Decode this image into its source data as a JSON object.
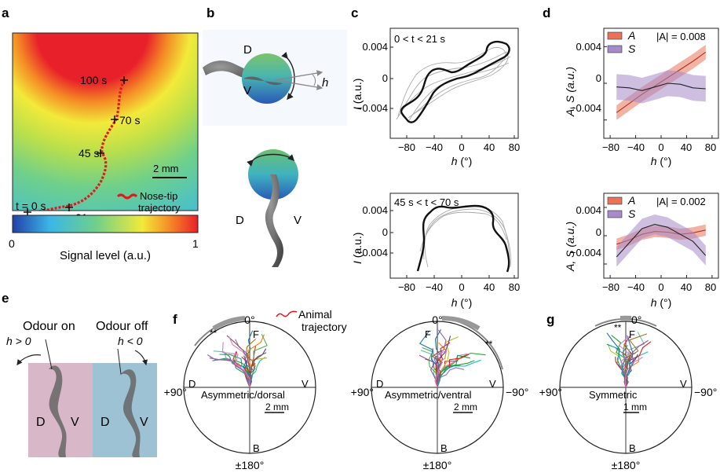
{
  "panel_labels": {
    "a": "a",
    "b": "b",
    "c": "c",
    "d": "d",
    "e": "e",
    "f": "f",
    "g": "g"
  },
  "panel_a": {
    "time_labels": [
      "t = 0 s",
      "21 s",
      "45 s",
      "70 s",
      "100 s"
    ],
    "scale_bar": "2 mm",
    "legend": [
      "Nose-tip",
      "trajectory"
    ],
    "colorbar_label": "Signal level (a.u.)",
    "colorbar_min": "0",
    "colorbar_max": "1",
    "colormap": [
      "#2340a8",
      "#3bb6e6",
      "#6fd08a",
      "#f2ea3a",
      "#f48a25",
      "#e8202a"
    ]
  },
  "panel_b": {
    "top": {
      "dorsal": "D",
      "ventral": "V",
      "head_angle": "h"
    },
    "bottom": {
      "dorsal": "D",
      "ventral": "V"
    }
  },
  "panel_c": {
    "ylabel_italic": "I",
    "ylabel_unit": " (a.u.)",
    "xlabel_italic": "h",
    "xlabel_unit": " (°)",
    "xticks": [
      "−80",
      "−40",
      "0",
      "40",
      "80"
    ],
    "yticks": [
      "0.004",
      "0",
      "−0.004"
    ],
    "top_window": "0 < t < 21 s",
    "bottom_window": "45 s < t < 70 s"
  },
  "panel_d": {
    "ylabel": "A, S (a.u.)",
    "xlabel_italic": "h",
    "xlabel_unit": " (°)",
    "xticks": [
      "−80",
      "−40",
      "0",
      "40",
      "80"
    ],
    "yticks": [
      "0.004",
      "0",
      "−0.004"
    ],
    "legend": [
      "A",
      "S"
    ],
    "top_annotation": "|A| = 0.008",
    "bottom_annotation": "|A| = 0.002",
    "colors": {
      "A": "#e8735a",
      "S": "#a58bc8"
    }
  },
  "chart_data": [
    {
      "type": "line",
      "panel": "d-top",
      "x": [
        -70,
        -50,
        -30,
        -10,
        10,
        30,
        50,
        70
      ],
      "series": [
        {
          "name": "A",
          "values": [
            -0.0032,
            -0.0022,
            -0.0012,
            -0.0003,
            0.0006,
            0.0015,
            0.0024,
            0.0034
          ]
        },
        {
          "name": "S",
          "values": [
            -0.0004,
            -0.0005,
            -0.0008,
            -0.0004,
            0.0,
            -0.0001,
            -0.0005,
            -0.0006
          ]
        }
      ],
      "xlim": [
        -90,
        90
      ],
      "ylim": [
        -0.006,
        0.006
      ]
    },
    {
      "type": "line",
      "panel": "d-bottom",
      "x": [
        -70,
        -50,
        -30,
        -10,
        10,
        30,
        50,
        70
      ],
      "series": [
        {
          "name": "A",
          "values": [
            -0.0012,
            -0.0006,
            0.0002,
            0.0006,
            0.0005,
            0.0002,
            0.0004,
            0.0008
          ]
        },
        {
          "name": "S",
          "values": [
            -0.003,
            -0.001,
            0.001,
            0.0016,
            0.0012,
            0.0002,
            -0.0008,
            -0.0028
          ]
        }
      ],
      "xlim": [
        -90,
        90
      ],
      "ylim": [
        -0.006,
        0.006
      ]
    }
  ],
  "panel_e": {
    "odour_on": "Odour on",
    "odour_off": "Odour off",
    "h_pos": "h > 0",
    "h_neg": "h < 0",
    "dorsal": "D",
    "ventral": "V"
  },
  "panel_f": {
    "legend": [
      "Animal",
      "trajectory"
    ],
    "zero": "0°",
    "plus90": "+90°",
    "minus90": "−90°",
    "pm180": "±180°",
    "F": "F",
    "B": "B",
    "D": "D",
    "V": "V",
    "significance": "**",
    "left_title": "Asymmetric/dorsal",
    "right_title": "Asymmetric/ventral",
    "scale_bar": "2 mm"
  },
  "panel_g": {
    "zero": "0°",
    "plus90": "+90°",
    "minus90": "−90°",
    "pm180": "±180°",
    "F": "F",
    "B": "B",
    "V": "V",
    "significance": "**",
    "title": "Symmetric",
    "scale_bar": "1 mm"
  }
}
